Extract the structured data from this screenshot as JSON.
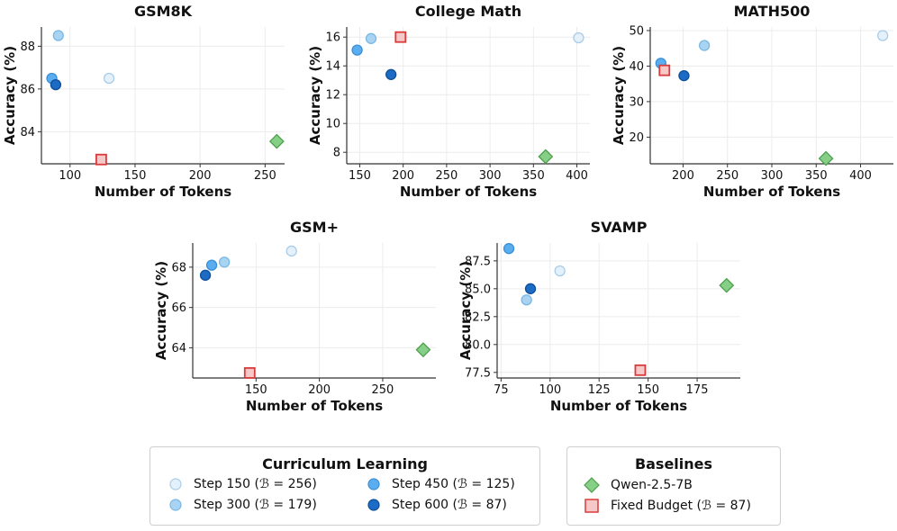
{
  "colors": {
    "step150": "#e4f1fb",
    "step300": "#a9d3f2",
    "step450": "#5aaef0",
    "step600": "#1c6bc4",
    "qwen": "#86cf86",
    "fixed": "#f7c8c8",
    "fixed_edge": "#d93b3b",
    "qwen_edge": "#4e9f4e"
  },
  "chart_data": [
    {
      "type": "scatter",
      "title": "GSM8K",
      "xlabel": "Number of Tokens",
      "ylabel": "Accuracy (%)",
      "xlim": [
        78,
        265
      ],
      "ylim": [
        82.5,
        88.9
      ],
      "xticks": [
        "100",
        "150",
        "200",
        "250"
      ],
      "yticks": [
        "84",
        "86",
        "88"
      ],
      "points": {
        "step150": [
          130,
          86.5
        ],
        "step300": [
          91,
          88.5
        ],
        "step450": [
          86,
          86.5
        ],
        "step600": [
          89,
          86.2
        ],
        "qwen": [
          259,
          83.55
        ],
        "fixed": [
          124,
          82.7
        ]
      }
    },
    {
      "type": "scatter",
      "title": "College Math",
      "xlabel": "Number of Tokens",
      "ylabel": "Accuracy (%)",
      "xlim": [
        135,
        415
      ],
      "ylim": [
        7.2,
        16.7
      ],
      "xticks": [
        "150",
        "200",
        "250",
        "300",
        "350",
        "400"
      ],
      "yticks": [
        "8",
        "10",
        "12",
        "14",
        "16"
      ],
      "points": {
        "step150": [
          402,
          15.95
        ],
        "step300": [
          163,
          15.9
        ],
        "step450": [
          147,
          15.1
        ],
        "step600": [
          186,
          13.4
        ],
        "qwen": [
          364,
          7.7
        ],
        "fixed": [
          197,
          16.0
        ]
      }
    },
    {
      "type": "scatter",
      "title": "MATH500",
      "xlabel": "Number of Tokens",
      "ylabel": "Accuracy (%)",
      "xlim": [
        163,
        437
      ],
      "ylim": [
        12.5,
        51
      ],
      "xticks": [
        "200",
        "250",
        "300",
        "350",
        "400"
      ],
      "yticks": [
        "20",
        "30",
        "40",
        "50"
      ],
      "points": {
        "step150": [
          425,
          48.6
        ],
        "step300": [
          224,
          45.8
        ],
        "step450": [
          175,
          40.8
        ],
        "step600": [
          201,
          37.3
        ],
        "qwen": [
          361,
          14.0
        ],
        "fixed": [
          179,
          38.8
        ]
      }
    },
    {
      "type": "scatter",
      "title": "GSM+",
      "xlabel": "Number of Tokens",
      "ylabel": "Accuracy (%)",
      "xlim": [
        100,
        292
      ],
      "ylim": [
        62.5,
        69.2
      ],
      "xticks": [
        "150",
        "200",
        "250"
      ],
      "yticks": [
        "64",
        "66",
        "68"
      ],
      "points": {
        "step150": [
          178,
          68.8
        ],
        "step300": [
          125,
          68.25
        ],
        "step450": [
          115,
          68.1
        ],
        "step600": [
          110,
          67.6
        ],
        "qwen": [
          282,
          63.9
        ],
        "fixed": [
          145,
          62.75
        ]
      }
    },
    {
      "type": "scatter",
      "title": "SVAMP",
      "xlabel": "Number of Tokens",
      "ylabel": "Accuracy (%)",
      "xlim": [
        73,
        197
      ],
      "ylim": [
        77.0,
        89.1
      ],
      "xticks": [
        "75",
        "100",
        "125",
        "150",
        "175"
      ],
      "yticks": [
        "77.5",
        "80.0",
        "82.5",
        "85.0",
        "87.5"
      ],
      "points": {
        "step150": [
          105,
          86.6
        ],
        "step300": [
          88,
          84.0
        ],
        "step450": [
          79,
          88.6
        ],
        "step600": [
          90,
          85.0
        ],
        "qwen": [
          190,
          85.3
        ],
        "fixed": [
          146,
          77.7
        ]
      }
    }
  ],
  "legend": {
    "curriculum": {
      "title": "Curriculum Learning",
      "items": [
        {
          "key": "step150",
          "label": "Step 150 (ℬ = 256)"
        },
        {
          "key": "step450",
          "label": "Step 450 (ℬ = 125)"
        },
        {
          "key": "step300",
          "label": "Step 300 (ℬ = 179)"
        },
        {
          "key": "step600",
          "label": "Step 600 (ℬ = 87)"
        }
      ]
    },
    "baselines": {
      "title": "Baselines",
      "items": [
        {
          "key": "qwen",
          "label": "Qwen-2.5-7B"
        },
        {
          "key": "fixed",
          "label": "Fixed Budget (ℬ = 87)"
        }
      ]
    }
  }
}
